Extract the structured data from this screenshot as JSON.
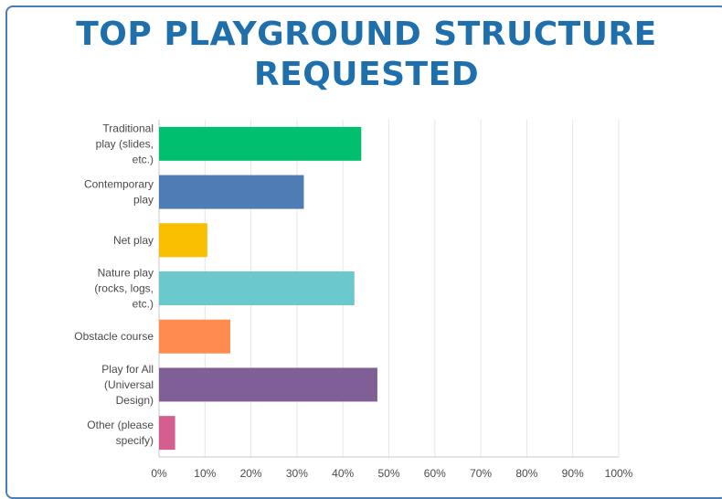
{
  "header": {
    "title": "TOP PLAYGROUND STRUCTURE REQUESTED"
  },
  "chart_data": {
    "type": "bar",
    "orientation": "horizontal",
    "title": "TOP PLAYGROUND STRUCTURE REQUESTED",
    "categories": [
      "Traditional play (slides, etc.)",
      "Contemporary play",
      "Net play",
      "Nature play (rocks, logs, etc.)",
      "Obstacle course",
      "Play for All (Universal Design)",
      "Other (please specify)"
    ],
    "category_lines": [
      [
        "Traditional",
        "play (slides,",
        "etc.)"
      ],
      [
        "Contemporary",
        "play"
      ],
      [
        "Net play"
      ],
      [
        "Nature play",
        "(rocks, logs,",
        "etc.)"
      ],
      [
        "Obstacle course"
      ],
      [
        "Play for All",
        "(Universal",
        "Design)"
      ],
      [
        "Other (please",
        "specify)"
      ]
    ],
    "values": [
      44,
      31.5,
      10.5,
      42.5,
      15.5,
      47.5,
      3.5
    ],
    "colors": [
      "#00bf6f",
      "#507cb6",
      "#f9be00",
      "#6bc8cd",
      "#ff8b4f",
      "#7f5f95",
      "#d25f90"
    ],
    "xlim": [
      0,
      100
    ],
    "xticks": [
      "0%",
      "10%",
      "20%",
      "30%",
      "40%",
      "50%",
      "60%",
      "70%",
      "80%",
      "90%",
      "100%"
    ],
    "grid": true,
    "xlabel": "",
    "ylabel": ""
  }
}
